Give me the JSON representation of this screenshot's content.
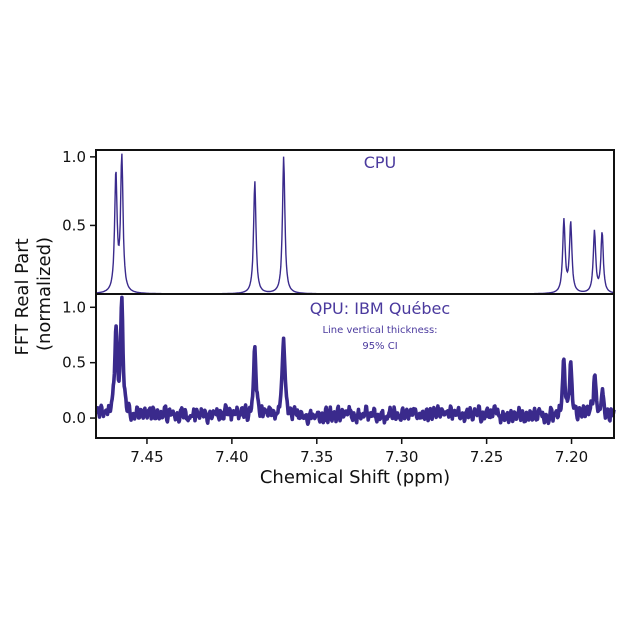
{
  "colors": {
    "line": "#3a2a8c",
    "text_accent": "#4b3a9e",
    "axis": "#111111"
  },
  "chart_data": [
    {
      "type": "line",
      "panel": "top",
      "title": "CPU",
      "xlabel": "Chemical Shift (ppm)",
      "ylabel": "FFT Real Part (normalized)",
      "xlim": [
        7.48,
        7.175
      ],
      "ylim": [
        0.0,
        1.05
      ],
      "x_reversed": true,
      "xticks": [
        7.45,
        7.4,
        7.35,
        7.3,
        7.25,
        7.2
      ],
      "xtick_labels": [
        "7.45",
        "7.40",
        "7.35",
        "7.30",
        "7.25",
        "7.20"
      ],
      "yticks": [
        0.5,
        1.0
      ],
      "ytick_labels": [
        "0.5",
        "1.0"
      ],
      "baseline": 0.0,
      "peaks": [
        {
          "center": 7.4683,
          "height": 0.86
        },
        {
          "center": 7.4648,
          "height": 0.98
        },
        {
          "center": 7.3865,
          "height": 0.82
        },
        {
          "center": 7.3695,
          "height": 1.0
        },
        {
          "center": 7.2045,
          "height": 0.53
        },
        {
          "center": 7.2005,
          "height": 0.51
        },
        {
          "center": 7.1865,
          "height": 0.45
        },
        {
          "center": 7.182,
          "height": 0.44
        }
      ]
    },
    {
      "type": "line",
      "panel": "bottom",
      "title": "QPU: IBM Québec",
      "annotation_line1": "Line vertical thickness:",
      "annotation_line2": "95% CI",
      "xlim": [
        7.48,
        7.175
      ],
      "ylim": [
        -0.18,
        1.12
      ],
      "x_reversed": true,
      "yticks": [
        0.0,
        0.5,
        1.0
      ],
      "ytick_labels": [
        "0.0",
        "0.5",
        "1.0"
      ],
      "baseline": 0.03,
      "noise_amplitude": 0.07,
      "peaks": [
        {
          "center": 7.4683,
          "height": 0.78
        },
        {
          "center": 7.4648,
          "height": 0.98
        },
        {
          "center": 7.3865,
          "height": 0.62
        },
        {
          "center": 7.3695,
          "height": 0.68
        },
        {
          "center": 7.2045,
          "height": 0.46
        },
        {
          "center": 7.2005,
          "height": 0.42
        },
        {
          "center": 7.1865,
          "height": 0.36
        },
        {
          "center": 7.182,
          "height": 0.22
        }
      ]
    }
  ]
}
